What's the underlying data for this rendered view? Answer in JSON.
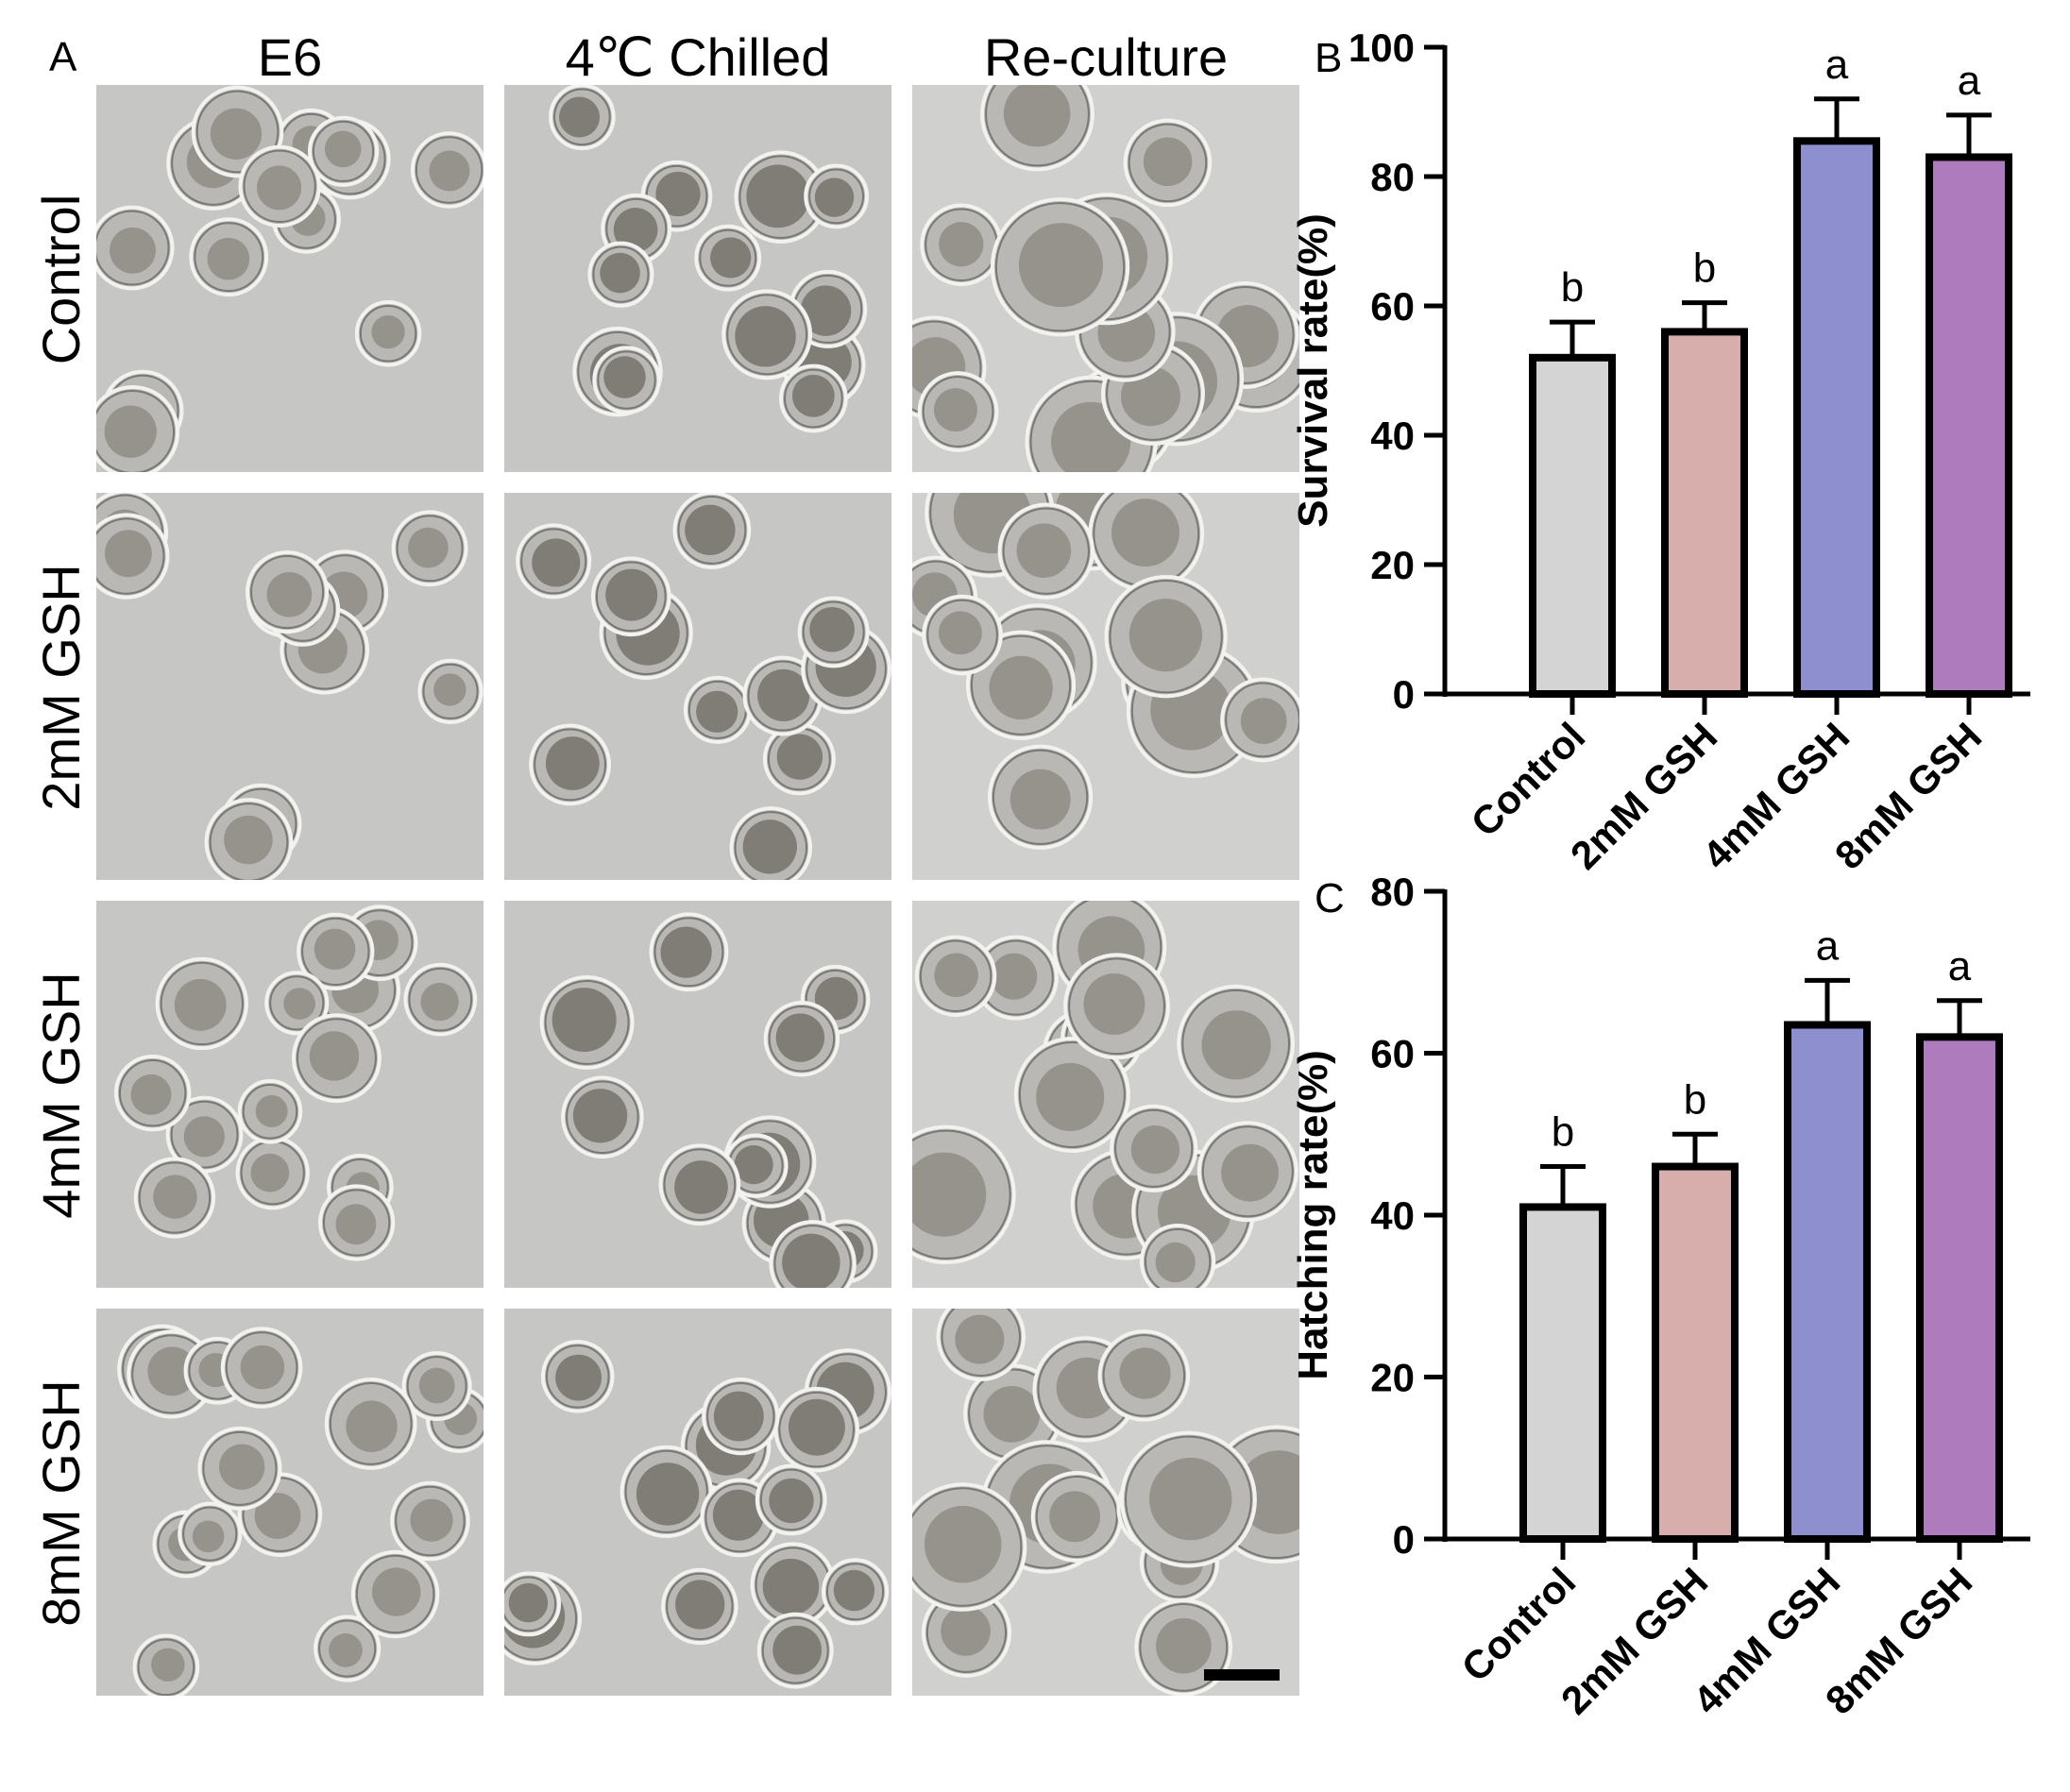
{
  "panel_a": {
    "letter": "A",
    "column_titles": [
      "E6",
      "4℃ Chilled",
      "Re-culture"
    ],
    "row_labels": [
      "Control",
      "2mM GSH",
      "4mM GSH",
      "8mM GSH"
    ]
  },
  "chart_data": [
    {
      "panel": "B",
      "type": "bar",
      "categories": [
        "Control",
        "2mM GSH",
        "4mM GSH",
        "8mM GSH"
      ],
      "values": [
        52,
        56,
        85.5,
        83
      ],
      "errors": [
        5.5,
        4.5,
        6.5,
        6.5
      ],
      "significance_letters": [
        "b",
        "b",
        "a",
        "a"
      ],
      "bar_colors": [
        "#d4d4d4",
        "#d8aeac",
        "#8e8fce",
        "#ae7cbd"
      ],
      "ylabel": "Survival rate(%)",
      "xlabel": "",
      "ylim": [
        0,
        100
      ],
      "yticks": [
        0,
        20,
        40,
        60,
        80,
        100
      ],
      "grid": false
    },
    {
      "panel": "C",
      "type": "bar",
      "categories": [
        "Control",
        "2mM GSH",
        "4mM GSH",
        "8mM GSH"
      ],
      "values": [
        41,
        46,
        63.5,
        62
      ],
      "errors": [
        5,
        4,
        5.5,
        4.5
      ],
      "significance_letters": [
        "b",
        "b",
        "a",
        "a"
      ],
      "bar_colors": [
        "#d4d4d4",
        "#d8aeac",
        "#8e8fce",
        "#ae7cbd"
      ],
      "ylabel": "Hatching rate(%)",
      "xlabel": "",
      "ylim": [
        0,
        80
      ],
      "yticks": [
        0,
        20,
        40,
        60,
        80
      ],
      "grid": false
    }
  ]
}
